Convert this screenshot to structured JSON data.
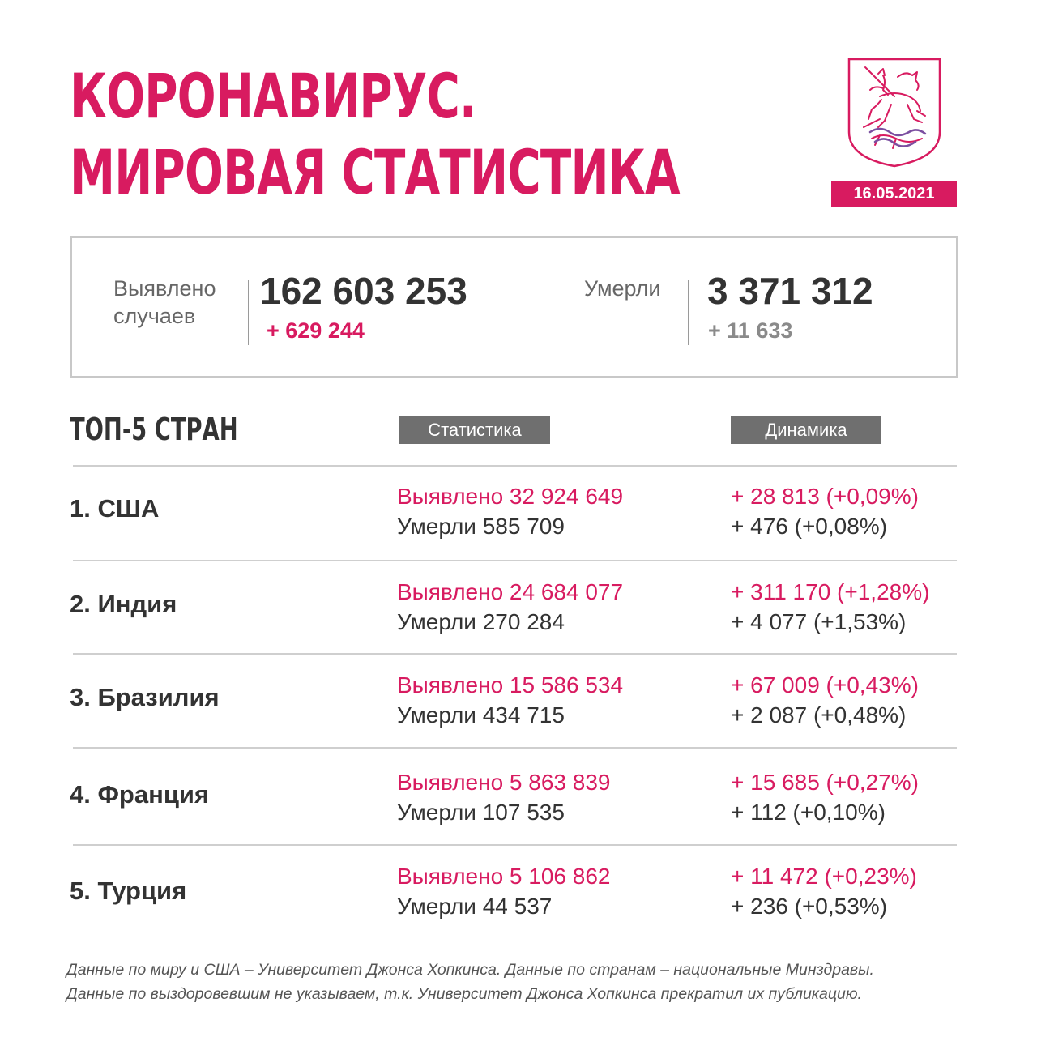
{
  "header": {
    "title_line1": "КОРОНАВИРУС.",
    "title_line2": "МИРОВАЯ СТАТИСТИКА",
    "date": "16.05.2021",
    "emblem_icon": "moscow-coat-of-arms-icon"
  },
  "summary": {
    "cases_label_line1": "Выявлено",
    "cases_label_line2": "случаев",
    "cases_total": "162 603 253",
    "cases_delta": "+ 629 244",
    "deaths_label": "Умерли",
    "deaths_total": "3 371 312",
    "deaths_delta": "+ 11 633"
  },
  "top5": {
    "title": "ТОП-5 СТРАН",
    "col_stats": "Статистика",
    "col_dynamics": "Динамика",
    "rows": [
      {
        "country": "1. США",
        "cases": "Выявлено 32 924 649",
        "deaths": "Умерли 585 709",
        "cases_delta": "+ 28 813 (+0,09%)",
        "deaths_delta": "+ 476 (+0,08%)"
      },
      {
        "country": "2. Индия",
        "cases": "Выявлено 24 684 077",
        "deaths": "Умерли 270 284",
        "cases_delta": "+ 311 170 (+1,28%)",
        "deaths_delta": "+ 4 077 (+1,53%)"
      },
      {
        "country": "3. Бразилия",
        "cases": "Выявлено 15 586 534",
        "deaths": "Умерли 434 715",
        "cases_delta": "+ 67 009 (+0,43%)",
        "deaths_delta": "+ 2 087 (+0,48%)"
      },
      {
        "country": "4. Франция",
        "cases": "Выявлено 5 863 839",
        "deaths": "Умерли 107 535",
        "cases_delta": "+ 15 685 (+0,27%)",
        "deaths_delta": "+ 112 (+0,10%)"
      },
      {
        "country": "5. Турция",
        "cases": "Выявлено 5 106 862",
        "deaths": "Умерли 44 537",
        "cases_delta": "+ 11 472 (+0,23%)",
        "deaths_delta": "+ 236 (+0,53%)"
      }
    ]
  },
  "footnote": {
    "line1": "Данные по миру и США – Университет Джонса Хопкинса. Данные по странам – национальные Минздравы.",
    "line2": "Данные по выздоровевшим не указываем, т.к. Университет Джонса Хопкинса прекратил их публикацию."
  },
  "colors": {
    "accent": "#d81b60",
    "text": "#333333",
    "muted": "#888888",
    "header_bg": "#6f6f6f"
  }
}
